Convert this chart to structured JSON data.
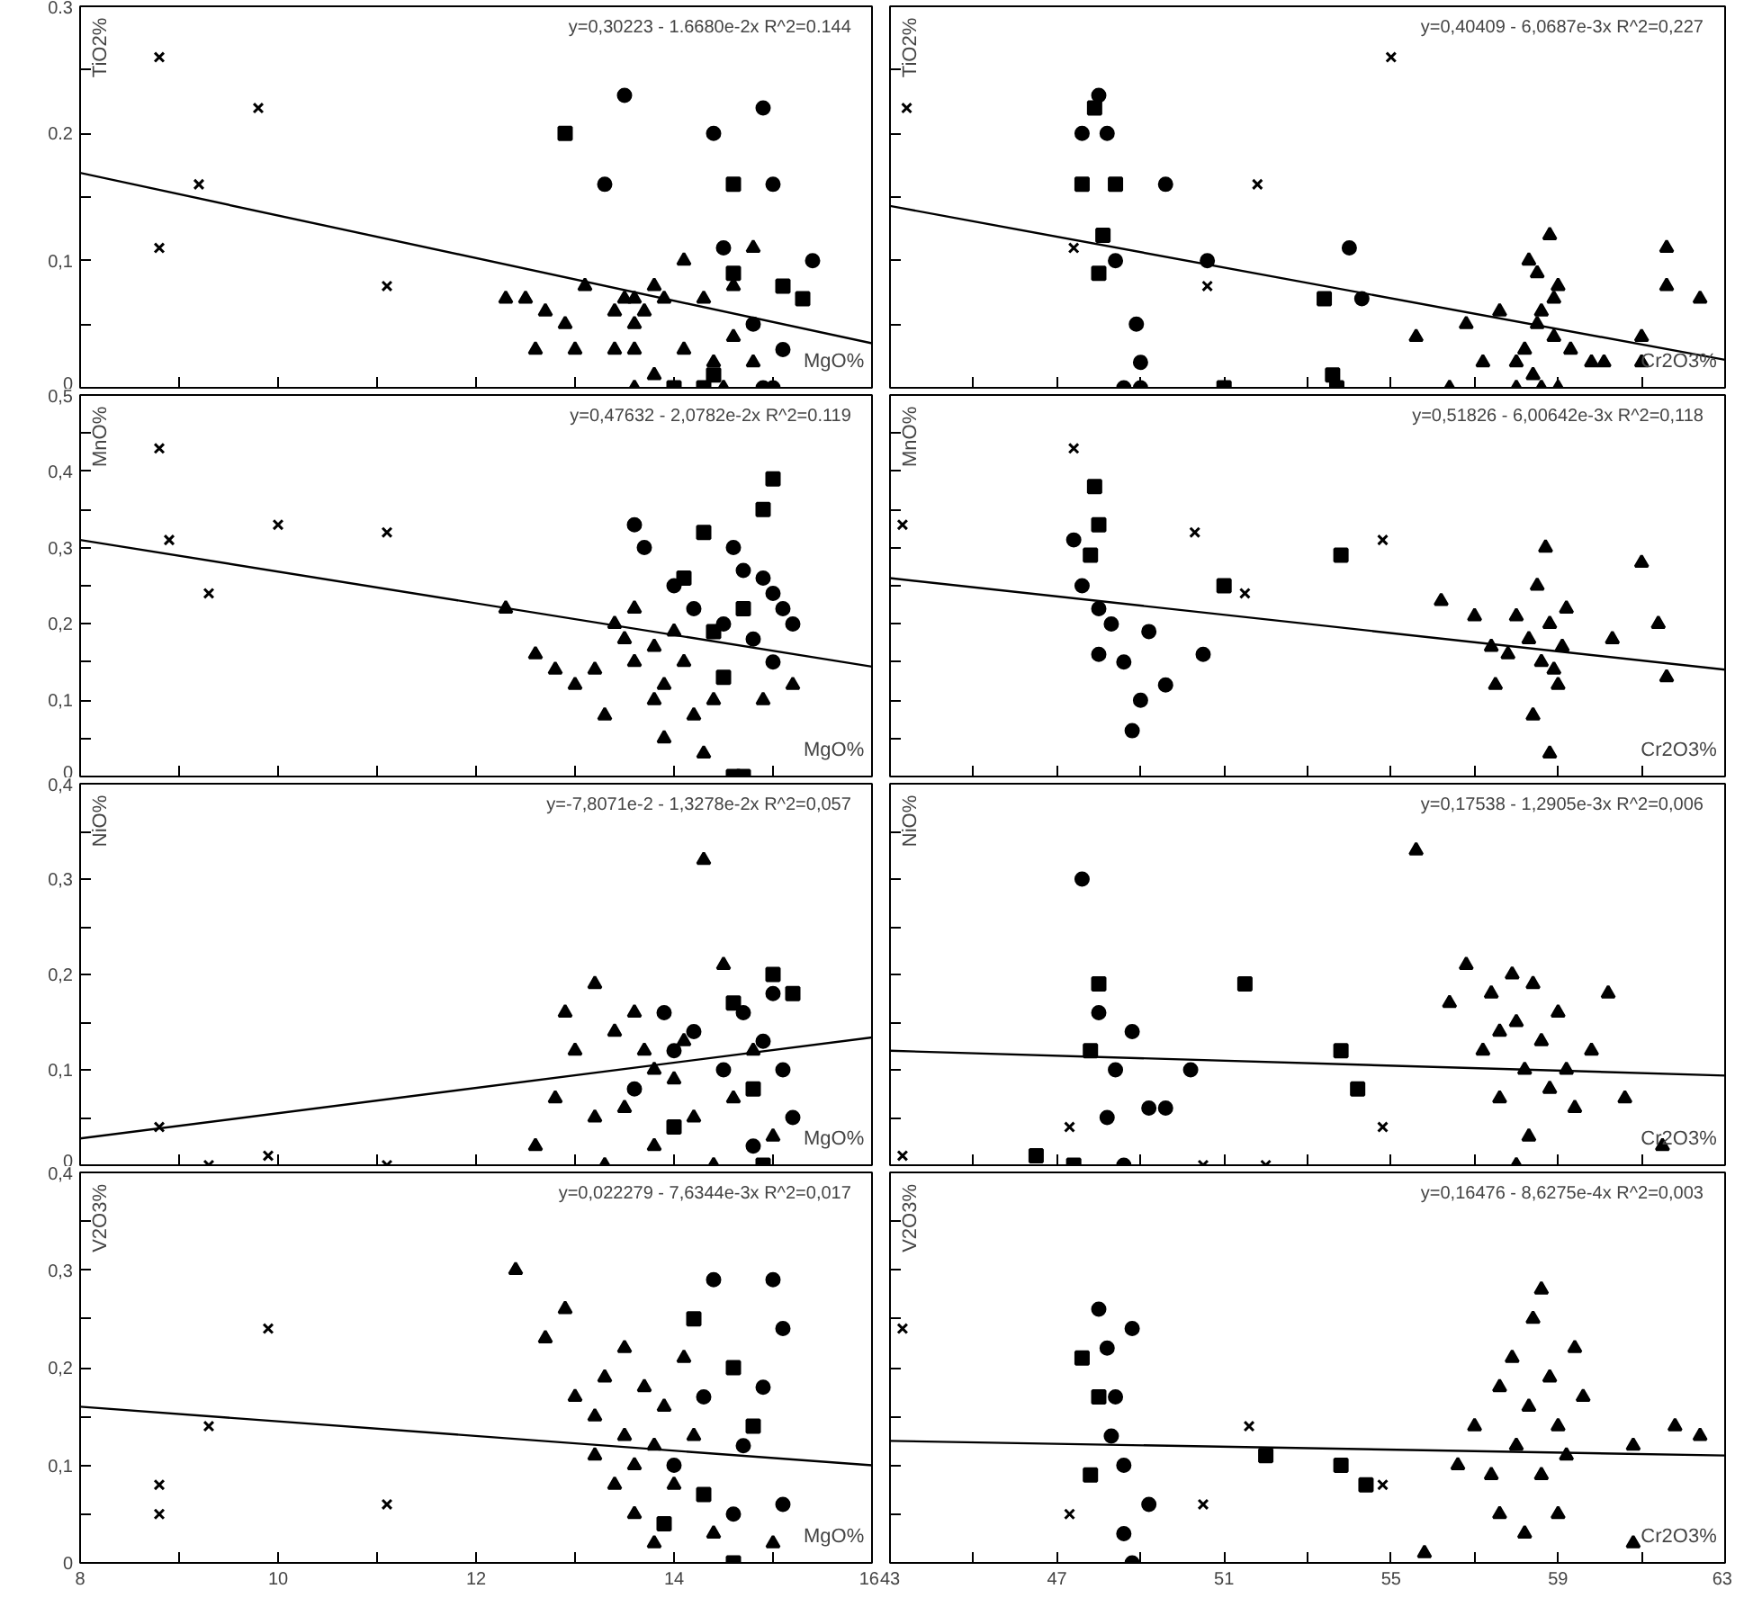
{
  "chart_data": [
    {
      "type": "scatter",
      "xlabel": "MgO%",
      "ylabel": "TiO2%",
      "annotations": [
        "y=0,30223 - 1.6680e-2x  R^2=0.144"
      ],
      "xlim": [
        8,
        16
      ],
      "ylim": [
        0,
        0.3
      ],
      "xticks": [
        8,
        {
          "value": 9,
          "label": null
        },
        10,
        {
          "value": 11,
          "label": null
        },
        12,
        {
          "value": 13,
          "label": null
        },
        14,
        {
          "value": 15,
          "label": null
        },
        16
      ],
      "yticks": [
        0,
        {
          "value": 0.05,
          "label": null
        },
        {
          "value": 0.1,
          "label": "0,1"
        },
        {
          "value": 0.15,
          "label": null
        },
        0.2,
        {
          "value": 0.25,
          "label": null
        },
        0.3
      ],
      "tick_labels": "y",
      "series": [
        {
          "type": "line",
          "color": "#000000",
          "x": [
            8,
            16
          ],
          "values": [
            0.169,
            0.035
          ]
        },
        {
          "marker": "cross",
          "color": "#000000",
          "x": [
            8.8,
            9.2,
            9.8,
            8.8,
            11.1
          ],
          "values": [
            0.26,
            0.16,
            0.22,
            0.11,
            0.08
          ]
        },
        {
          "marker": "circle",
          "color": "#000000",
          "x": [
            13.5,
            13.3,
            14.4,
            14.9,
            15.0,
            14.5,
            15.4,
            14.8,
            15.1,
            14.9,
            15.0
          ],
          "values": [
            0.23,
            0.16,
            0.2,
            0.22,
            0.16,
            0.11,
            0.1,
            0.05,
            0.03,
            0,
            0
          ]
        },
        {
          "marker": "square",
          "color": "#000000",
          "x": [
            12.9,
            14.6,
            14.6,
            15.3,
            15.1,
            14.0,
            14.3,
            14.4
          ],
          "values": [
            0.2,
            0.16,
            0.09,
            0.07,
            0.08,
            0,
            0,
            0.01
          ]
        },
        {
          "marker": "triangle",
          "color": "#000000",
          "x": [
            12.3,
            12.5,
            12.7,
            12.9,
            13.0,
            12.6,
            13.1,
            13.4,
            13.5,
            13.6,
            13.6,
            13.8,
            13.7,
            13.4,
            13.6,
            13.9,
            14.1,
            14.3,
            14.6,
            14.6,
            14.4,
            14.8,
            13.6,
            13.8,
            14.5,
            14.8,
            14.1
          ],
          "values": [
            0.07,
            0.07,
            0.06,
            0.05,
            0.03,
            0.03,
            0.08,
            0.06,
            0.07,
            0.07,
            0.05,
            0.08,
            0.06,
            0.03,
            0.03,
            0.07,
            0.03,
            0.07,
            0.08,
            0.04,
            0.02,
            0.02,
            0,
            0.01,
            0,
            0.11,
            0.1
          ]
        }
      ]
    },
    {
      "type": "scatter",
      "xlabel": "Cr2O3%",
      "ylabel": "TiO2%",
      "annotations": [
        "y=0,40409 - 6,0687e-3x  R^2=0,227"
      ],
      "xlim": [
        43,
        63
      ],
      "ylim": [
        0,
        0.3
      ],
      "xticks": [
        43,
        {
          "value": 45,
          "label": null
        },
        47,
        {
          "value": 49,
          "label": null
        },
        51,
        {
          "value": 53,
          "label": null
        },
        55,
        {
          "value": 57,
          "label": null
        },
        59,
        {
          "value": 61,
          "label": null
        },
        63
      ],
      "yticks": [
        0,
        0.05,
        0.1,
        0.15,
        0.2,
        0.25,
        0.3
      ],
      "tick_labels": false,
      "series": [
        {
          "type": "line",
          "color": "#000000",
          "x": [
            43,
            63
          ],
          "values": [
            0.143,
            0.022
          ]
        },
        {
          "marker": "cross",
          "color": "#000000",
          "x": [
            43.4,
            47.4,
            50.6,
            51.8,
            55.0
          ],
          "values": [
            0.22,
            0.11,
            0.08,
            0.16,
            0.26
          ]
        },
        {
          "marker": "circle",
          "color": "#000000",
          "x": [
            48.0,
            47.6,
            48.2,
            49.6,
            50.6,
            54.0,
            54.3,
            48.9,
            48.4,
            48.6,
            49.0,
            49.0
          ],
          "values": [
            0.23,
            0.2,
            0.2,
            0.16,
            0.1,
            0.11,
            0.07,
            0.05,
            0.1,
            0,
            0.02,
            0
          ]
        },
        {
          "marker": "square",
          "color": "#000000",
          "x": [
            47.9,
            47.6,
            48.4,
            48.1,
            48.0,
            53.4,
            51.0,
            53.6,
            53.7
          ],
          "values": [
            0.22,
            0.16,
            0.16,
            0.12,
            0.09,
            0.07,
            0,
            0.01,
            0
          ]
        },
        {
          "marker": "triangle",
          "color": "#000000",
          "x": [
            55.6,
            56.8,
            57.2,
            58.0,
            58.3,
            58.5,
            58.9,
            58.5,
            58.6,
            59.0,
            59.3,
            59.8,
            60.1,
            61.6,
            61.6,
            62.4,
            61.0,
            61.0,
            57.6,
            58.2,
            58.4,
            59.0,
            58.6,
            58.0,
            56.4,
            58.8,
            58.9
          ],
          "values": [
            0.04,
            0.05,
            0.02,
            0.02,
            0.1,
            0.09,
            0.07,
            0.05,
            0.06,
            0.08,
            0.03,
            0.02,
            0.02,
            0.11,
            0.08,
            0.07,
            0.04,
            0.02,
            0.06,
            0.03,
            0.01,
            0,
            0,
            0,
            0,
            0.12,
            0.04
          ]
        }
      ]
    },
    {
      "type": "scatter",
      "xlabel": "MgO%",
      "ylabel": "MnO%",
      "annotations": [
        "y=0,47632 - 2,0782e-2x  R^2=0.119"
      ],
      "xlim": [
        8,
        16
      ],
      "ylim": [
        0,
        0.5
      ],
      "xticks": [
        8,
        {
          "value": 9,
          "label": null
        },
        10,
        {
          "value": 11,
          "label": null
        },
        12,
        {
          "value": 13,
          "label": null
        },
        14,
        {
          "value": 15,
          "label": null
        },
        16
      ],
      "yticks": [
        0,
        {
          "value": 0.05,
          "label": null
        },
        {
          "value": 0.1,
          "label": "0,1"
        },
        {
          "value": 0.15,
          "label": null
        },
        {
          "value": 0.2,
          "label": "0,2"
        },
        {
          "value": 0.25,
          "label": null
        },
        {
          "value": 0.3,
          "label": "0,3"
        },
        {
          "value": 0.35,
          "label": null
        },
        {
          "value": 0.4,
          "label": "0,4"
        },
        {
          "value": 0.45,
          "label": null
        },
        {
          "value": 0.5,
          "label": "0,5"
        }
      ],
      "tick_labels": "y",
      "series": [
        {
          "type": "line",
          "color": "#000000",
          "x": [
            8,
            16
          ],
          "values": [
            0.31,
            0.144
          ]
        },
        {
          "marker": "cross",
          "color": "#000000",
          "x": [
            8.8,
            8.9,
            9.3,
            10.0,
            11.1
          ],
          "values": [
            0.43,
            0.31,
            0.24,
            0.33,
            0.32
          ]
        },
        {
          "marker": "circle",
          "color": "#000000",
          "x": [
            13.6,
            13.7,
            14.0,
            14.2,
            14.5,
            14.7,
            14.9,
            15.0,
            15.1,
            15.2,
            14.8,
            15.0,
            14.6
          ],
          "values": [
            0.33,
            0.3,
            0.25,
            0.22,
            0.2,
            0.27,
            0.26,
            0.24,
            0.22,
            0.2,
            0.18,
            0.15,
            0.3
          ]
        },
        {
          "marker": "square",
          "color": "#000000",
          "x": [
            14.3,
            15.0,
            14.9,
            14.1,
            14.4,
            14.7,
            14.6,
            14.7,
            14.5
          ],
          "values": [
            0.32,
            0.39,
            0.35,
            0.26,
            0.19,
            0.22,
            0,
            0,
            0.13
          ]
        },
        {
          "marker": "triangle",
          "color": "#000000",
          "x": [
            12.3,
            12.6,
            12.8,
            13.0,
            13.2,
            13.4,
            13.5,
            13.6,
            13.6,
            13.8,
            13.9,
            14.0,
            14.1,
            14.2,
            14.4,
            13.8,
            13.3,
            13.9,
            14.3,
            14.9,
            15.2
          ],
          "values": [
            0.22,
            0.16,
            0.14,
            0.12,
            0.14,
            0.2,
            0.18,
            0.22,
            0.15,
            0.17,
            0.12,
            0.19,
            0.15,
            0.08,
            0.1,
            0.1,
            0.08,
            0.05,
            0.03,
            0.1,
            0.12
          ]
        }
      ]
    },
    {
      "type": "scatter",
      "xlabel": "Cr2O3%",
      "ylabel": "MnO%",
      "annotations": [
        "y=0,51826 - 6,00642e-3x  R^2=0,118"
      ],
      "xlim": [
        43,
        63
      ],
      "ylim": [
        0,
        0.5
      ],
      "xticks": [
        43,
        {
          "value": 45,
          "label": null
        },
        47,
        {
          "value": 49,
          "label": null
        },
        51,
        {
          "value": 53,
          "label": null
        },
        55,
        {
          "value": 57,
          "label": null
        },
        59,
        {
          "value": 61,
          "label": null
        },
        63
      ],
      "yticks": [
        0,
        0.05,
        0.1,
        0.15,
        0.2,
        0.25,
        0.3,
        0.35,
        0.4,
        0.45,
        0.5
      ],
      "tick_labels": false,
      "series": [
        {
          "type": "line",
          "color": "#000000",
          "x": [
            43,
            63
          ],
          "values": [
            0.26,
            0.14
          ]
        },
        {
          "marker": "cross",
          "color": "#000000",
          "x": [
            43.3,
            47.4,
            50.3,
            51.5,
            54.8
          ],
          "values": [
            0.33,
            0.43,
            0.32,
            0.24,
            0.31
          ]
        },
        {
          "marker": "circle",
          "color": "#000000",
          "x": [
            47.4,
            47.6,
            48.0,
            48.3,
            48.0,
            48.6,
            49.2,
            49.6,
            49.0,
            48.8,
            50.5
          ],
          "values": [
            0.31,
            0.25,
            0.22,
            0.2,
            0.16,
            0.15,
            0.19,
            0.12,
            0.1,
            0.06,
            0.16
          ]
        },
        {
          "marker": "square",
          "color": "#000000",
          "x": [
            47.9,
            48.0,
            47.8,
            53.8,
            51.0
          ],
          "values": [
            0.38,
            0.33,
            0.29,
            0.29,
            0.25
          ]
        },
        {
          "marker": "triangle",
          "color": "#000000",
          "x": [
            56.2,
            57.0,
            57.4,
            57.8,
            58.0,
            58.3,
            58.5,
            58.6,
            58.8,
            58.9,
            59.0,
            59.2,
            59.1,
            58.7,
            61.0,
            61.4,
            60.3,
            61.6,
            57.5,
            58.4,
            58.8
          ],
          "values": [
            0.23,
            0.21,
            0.17,
            0.16,
            0.21,
            0.18,
            0.25,
            0.15,
            0.2,
            0.14,
            0.12,
            0.22,
            0.17,
            0.3,
            0.28,
            0.2,
            0.18,
            0.13,
            0.12,
            0.08,
            0.03
          ]
        }
      ]
    },
    {
      "type": "scatter",
      "xlabel": "MgO%",
      "ylabel": "NiO%",
      "annotations": [
        "y=-7,8071e-2 - 1,3278e-2x  R^2=0,057"
      ],
      "xlim": [
        8,
        16
      ],
      "ylim": [
        0,
        0.4
      ],
      "xticks": [
        8,
        {
          "value": 9,
          "label": null
        },
        10,
        {
          "value": 11,
          "label": null
        },
        12,
        {
          "value": 13,
          "label": null
        },
        14,
        {
          "value": 15,
          "label": null
        },
        16
      ],
      "yticks": [
        0,
        {
          "value": 0.05,
          "label": null
        },
        {
          "value": 0.1,
          "label": "0,1"
        },
        {
          "value": 0.15,
          "label": null
        },
        {
          "value": 0.2,
          "label": "0,2"
        },
        {
          "value": 0.25,
          "label": null
        },
        {
          "value": 0.3,
          "label": "0,3"
        },
        {
          "value": 0.35,
          "label": null
        },
        {
          "value": 0.4,
          "label": "0,4"
        }
      ],
      "tick_labels": "y",
      "series": [
        {
          "type": "line",
          "color": "#000000",
          "x": [
            8,
            16
          ],
          "values": [
            0.028,
            0.134
          ]
        },
        {
          "marker": "cross",
          "color": "#000000",
          "x": [
            8.8,
            9.3,
            9.9,
            11.1
          ],
          "values": [
            0.04,
            0,
            0.01,
            0
          ]
        },
        {
          "marker": "circle",
          "color": "#000000",
          "x": [
            13.9,
            14.0,
            14.2,
            14.5,
            14.7,
            14.9,
            15.0,
            15.1,
            15.2,
            14.8,
            13.6
          ],
          "values": [
            0.16,
            0.12,
            0.14,
            0.1,
            0.16,
            0.13,
            0.18,
            0.1,
            0.05,
            0.02,
            0.08
          ]
        },
        {
          "marker": "square",
          "color": "#000000",
          "x": [
            14.6,
            15.2,
            15.0,
            14.8,
            14.0,
            14.9
          ],
          "values": [
            0.17,
            0.18,
            0.2,
            0.08,
            0.04,
            0
          ]
        },
        {
          "marker": "triangle",
          "color": "#000000",
          "x": [
            12.6,
            12.8,
            12.9,
            13.0,
            13.2,
            13.2,
            13.4,
            13.5,
            13.6,
            13.7,
            13.8,
            13.8,
            14.0,
            14.1,
            14.3,
            14.2,
            14.5,
            14.6,
            14.8,
            15.0,
            13.3,
            14.4
          ],
          "values": [
            0.02,
            0.07,
            0.16,
            0.12,
            0.05,
            0.19,
            0.14,
            0.06,
            0.16,
            0.12,
            0.1,
            0.02,
            0.09,
            0.13,
            0.32,
            0.05,
            0.21,
            0.07,
            0.12,
            0.03,
            0,
            0
          ]
        }
      ]
    },
    {
      "type": "scatter",
      "xlabel": "Cr2O3%",
      "ylabel": "NiO%",
      "annotations": [
        "y=0,17538 - 1,2905e-3x  R^2=0,006"
      ],
      "xlim": [
        43,
        63
      ],
      "ylim": [
        0,
        0.4
      ],
      "xticks": [
        43,
        {
          "value": 45,
          "label": null
        },
        47,
        {
          "value": 49,
          "label": null
        },
        51,
        {
          "value": 53,
          "label": null
        },
        55,
        {
          "value": 57,
          "label": null
        },
        59,
        {
          "value": 61,
          "label": null
        },
        63
      ],
      "yticks": [
        0,
        0.05,
        0.1,
        0.15,
        0.2,
        0.25,
        0.3,
        0.35,
        0.4
      ],
      "tick_labels": false,
      "series": [
        {
          "type": "line",
          "color": "#000000",
          "x": [
            43,
            63
          ],
          "values": [
            0.12,
            0.094
          ]
        },
        {
          "marker": "cross",
          "color": "#000000",
          "x": [
            43.3,
            47.3,
            50.5,
            52.0,
            54.8
          ],
          "values": [
            0.01,
            0.04,
            0,
            0,
            0.04
          ]
        },
        {
          "marker": "circle",
          "color": "#000000",
          "x": [
            47.6,
            48.0,
            48.4,
            48.8,
            49.2,
            49.6,
            50.2,
            48.2,
            48.6
          ],
          "values": [
            0.3,
            0.16,
            0.1,
            0.14,
            0.06,
            0.06,
            0.1,
            0.05,
            0
          ]
        },
        {
          "marker": "square",
          "color": "#000000",
          "x": [
            48.0,
            47.8,
            51.5,
            53.8,
            54.2,
            46.5,
            47.4
          ],
          "values": [
            0.19,
            0.12,
            0.19,
            0.12,
            0.08,
            0.01,
            0
          ]
        },
        {
          "marker": "triangle",
          "color": "#000000",
          "x": [
            55.6,
            56.4,
            56.8,
            57.2,
            57.4,
            57.6,
            57.9,
            58.0,
            58.2,
            58.4,
            58.6,
            58.8,
            59.0,
            59.2,
            59.4,
            59.8,
            60.2,
            60.6,
            61.5,
            57.6,
            58.3,
            58.0
          ],
          "values": [
            0.33,
            0.17,
            0.21,
            0.12,
            0.18,
            0.14,
            0.2,
            0.15,
            0.1,
            0.19,
            0.13,
            0.08,
            0.16,
            0.1,
            0.06,
            0.12,
            0.18,
            0.07,
            0.02,
            0.07,
            0.03,
            0
          ]
        }
      ]
    },
    {
      "type": "scatter",
      "xlabel": "MgO%",
      "ylabel": "V2O3%",
      "annotations": [
        "y=0,022279 - 7,6344e-3x  R^2=0,017"
      ],
      "xlim": [
        8,
        16
      ],
      "ylim": [
        0,
        0.4
      ],
      "xticks": [
        8,
        {
          "value": 9,
          "label": null
        },
        10,
        {
          "value": 11,
          "label": null
        },
        12,
        {
          "value": 13,
          "label": null
        },
        14,
        {
          "value": 15,
          "label": null
        },
        16
      ],
      "yticks": [
        0,
        {
          "value": 0.05,
          "label": null
        },
        {
          "value": 0.1,
          "label": "0,1"
        },
        {
          "value": 0.15,
          "label": null
        },
        {
          "value": 0.2,
          "label": "0,2"
        },
        {
          "value": 0.25,
          "label": null
        },
        {
          "value": 0.3,
          "label": "0,3"
        },
        {
          "value": 0.35,
          "label": null
        },
        {
          "value": 0.4,
          "label": "0,4"
        }
      ],
      "series": [
        {
          "type": "line",
          "color": "#000000",
          "x": [
            8,
            16
          ],
          "values": [
            0.16,
            0.1
          ]
        },
        {
          "marker": "cross",
          "color": "#000000",
          "x": [
            8.8,
            8.8,
            9.3,
            9.9,
            11.1
          ],
          "values": [
            0.08,
            0.05,
            0.14,
            0.24,
            0.06
          ]
        },
        {
          "marker": "circle",
          "color": "#000000",
          "x": [
            14.4,
            15.0,
            15.1,
            14.9,
            14.3,
            14.0,
            14.6,
            15.1,
            14.7
          ],
          "values": [
            0.29,
            0.29,
            0.24,
            0.18,
            0.17,
            0.1,
            0.05,
            0.06,
            0.12
          ]
        },
        {
          "marker": "square",
          "color": "#000000",
          "x": [
            14.2,
            14.6,
            14.8,
            14.3,
            13.9,
            14.6
          ],
          "values": [
            0.25,
            0.2,
            0.14,
            0.07,
            0.04,
            0
          ]
        },
        {
          "marker": "triangle",
          "color": "#000000",
          "x": [
            12.4,
            12.7,
            12.9,
            13.0,
            13.2,
            13.3,
            13.5,
            13.5,
            13.6,
            13.7,
            13.8,
            13.9,
            14.0,
            14.1,
            14.2,
            13.6,
            13.4,
            13.8,
            14.4,
            15.0,
            13.2
          ],
          "values": [
            0.3,
            0.23,
            0.26,
            0.17,
            0.15,
            0.19,
            0.13,
            0.22,
            0.1,
            0.18,
            0.12,
            0.16,
            0.08,
            0.21,
            0.13,
            0.05,
            0.08,
            0.02,
            0.03,
            0.02,
            0.11
          ]
        }
      ]
    },
    {
      "type": "scatter",
      "xlabel": "Cr2O3%",
      "ylabel": "V2O3%",
      "annotations": [
        "y=0,16476 - 8,6275e-4x  R^2=0,003"
      ],
      "xlim": [
        43,
        63
      ],
      "ylim": [
        0,
        0.4
      ],
      "xticks": [
        43,
        {
          "value": 45,
          "label": null
        },
        47,
        {
          "value": 49,
          "label": null
        },
        51,
        {
          "value": 53,
          "label": null
        },
        55,
        {
          "value": 57,
          "label": null
        },
        59,
        {
          "value": 61,
          "label": null
        },
        63
      ],
      "yticks": [
        0,
        0.05,
        0.1,
        0.15,
        0.2,
        0.25,
        0.3,
        0.35,
        0.4
      ],
      "tick_labels": "x",
      "series": [
        {
          "type": "line",
          "color": "#000000",
          "x": [
            43,
            63
          ],
          "values": [
            0.125,
            0.11
          ]
        },
        {
          "marker": "cross",
          "color": "#000000",
          "x": [
            43.3,
            47.3,
            50.5,
            51.6,
            54.8
          ],
          "values": [
            0.24,
            0.05,
            0.06,
            0.14,
            0.08
          ]
        },
        {
          "marker": "circle",
          "color": "#000000",
          "x": [
            48.0,
            48.2,
            48.4,
            48.3,
            48.8,
            48.6,
            49.2,
            48.6,
            48.8
          ],
          "values": [
            0.26,
            0.22,
            0.17,
            0.13,
            0.24,
            0.1,
            0.06,
            0.03,
            0
          ]
        },
        {
          "marker": "square",
          "color": "#000000",
          "x": [
            47.6,
            48.0,
            47.8,
            52.0,
            53.8,
            54.4
          ],
          "values": [
            0.21,
            0.17,
            0.09,
            0.11,
            0.1,
            0.08
          ]
        },
        {
          "marker": "triangle",
          "color": "#000000",
          "x": [
            55.8,
            56.6,
            57.0,
            57.4,
            57.6,
            57.9,
            58.0,
            58.3,
            58.4,
            58.6,
            58.8,
            58.6,
            59.0,
            59.2,
            59.4,
            59.6,
            57.6,
            58.2,
            59.0,
            60.8,
            61.8,
            62.4,
            60.8
          ],
          "values": [
            0.01,
            0.1,
            0.14,
            0.09,
            0.18,
            0.21,
            0.12,
            0.16,
            0.25,
            0.28,
            0.19,
            0.09,
            0.14,
            0.11,
            0.22,
            0.17,
            0.05,
            0.03,
            0.05,
            0.12,
            0.14,
            0.13,
            0.02
          ]
        }
      ]
    }
  ]
}
